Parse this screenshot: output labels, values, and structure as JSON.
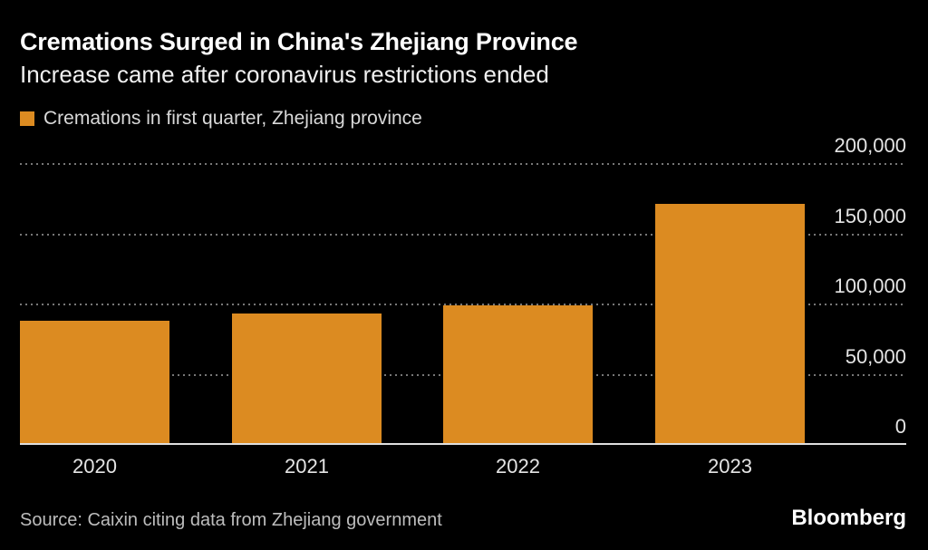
{
  "header": {
    "title": "Cremations Surged in China's Zhejiang Province",
    "subtitle": "Increase came after coronavirus restrictions ended"
  },
  "legend": {
    "label": "Cremations in first quarter, Zhejiang province"
  },
  "chart_data": {
    "type": "bar",
    "title": "Cremations Surged in China's Zhejiang Province",
    "subtitle": "Increase came after coronavirus restrictions ended",
    "series_label": "Cremations in first quarter, Zhejiang province",
    "categories": [
      "2020",
      "2021",
      "2022",
      "2023"
    ],
    "values": [
      88000,
      93000,
      99000,
      171000
    ],
    "xlabel": "",
    "ylabel": "",
    "ylim": [
      0,
      200000
    ],
    "yticks": [
      0,
      50000,
      100000,
      150000,
      200000
    ],
    "ytick_labels": [
      "0",
      "50,000",
      "100,000",
      "150,000",
      "200,000"
    ],
    "axis_side": "right",
    "grid": "horizontal-dotted",
    "legend_position": "top-left"
  },
  "footer": {
    "source": "Source: Caixin citing data from Zhejiang government",
    "brand": "Bloomberg"
  },
  "colors": {
    "background": "#000000",
    "bar": "#DC8B21",
    "title_text": "#FFFFFF",
    "subtitle_text": "#F0F0F0",
    "legend_text": "#D9D9D9",
    "tick_text": "#E4E4E4",
    "gridline": "#777777",
    "baseline": "#DFDFDF",
    "source_text": "#BDBDBD",
    "brand_text": "#FFFFFF"
  }
}
